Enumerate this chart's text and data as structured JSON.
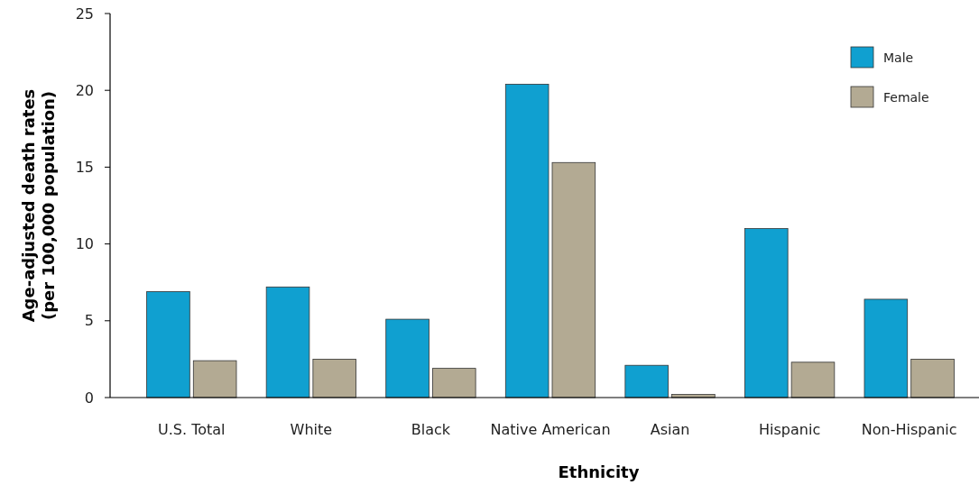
{
  "chart_data": {
    "type": "bar",
    "xlabel": "Ethnicity",
    "ylabel": "Age-adjusted death rates\n(per 100,000 population)",
    "categories": [
      "U.S. Total",
      "White",
      "Black",
      "Native American",
      "Asian",
      "Hispanic",
      "Non-Hispanic"
    ],
    "series": [
      {
        "name": "Male",
        "color": "#10a0d0",
        "values": [
          6.9,
          7.2,
          5.1,
          20.4,
          2.1,
          11.0,
          6.4
        ]
      },
      {
        "name": "Female",
        "color": "#b3aa93",
        "values": [
          2.4,
          2.5,
          1.9,
          15.3,
          0.2,
          2.3,
          2.5
        ]
      }
    ],
    "ylim": [
      0,
      25
    ],
    "yticks": [
      0,
      5,
      10,
      15,
      20,
      25
    ],
    "grid": false,
    "legend": "top right"
  }
}
